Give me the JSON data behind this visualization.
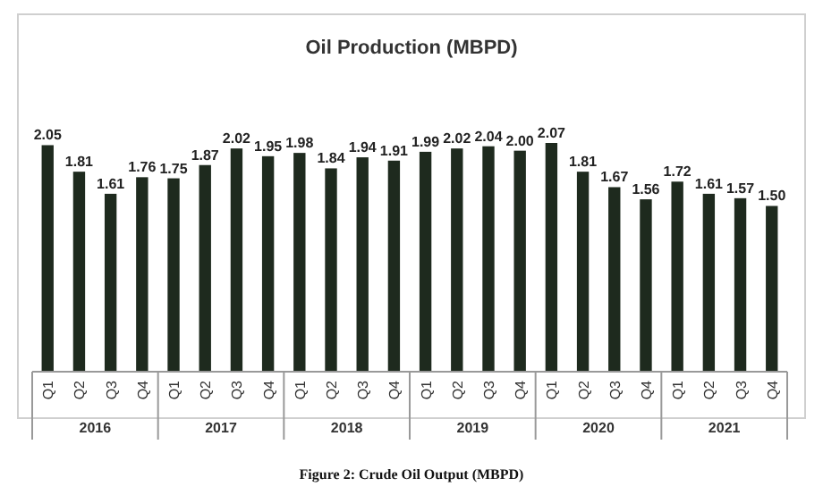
{
  "chart_data": {
    "type": "bar",
    "title": "Oil Production (MBPD)",
    "categories": [
      "Q1",
      "Q2",
      "Q3",
      "Q4",
      "Q1",
      "Q2",
      "Q3",
      "Q4",
      "Q1",
      "Q2",
      "Q3",
      "Q4",
      "Q1",
      "Q2",
      "Q3",
      "Q4",
      "Q1",
      "Q2",
      "Q3",
      "Q4",
      "Q1",
      "Q2",
      "Q3",
      "Q4"
    ],
    "values": [
      2.05,
      1.81,
      1.61,
      1.76,
      1.75,
      1.87,
      2.02,
      1.95,
      1.98,
      1.84,
      1.94,
      1.91,
      1.99,
      2.02,
      2.04,
      2.0,
      2.07,
      1.81,
      1.67,
      1.56,
      1.72,
      1.61,
      1.57,
      1.5
    ],
    "value_labels": [
      "2.05",
      "1.81",
      "1.61",
      "1.76",
      "1.75",
      "1.87",
      "2.02",
      "1.95",
      "1.98",
      "1.84",
      "1.94",
      "1.91",
      "1.99",
      "2.02",
      "2.04",
      "2.00",
      "2.07",
      "1.81",
      "1.67",
      "1.56",
      "1.72",
      "1.61",
      "1.57",
      "1.50"
    ],
    "color": "#1e2a1e",
    "annotations": [
      "2016",
      "2017",
      "2018",
      "2019",
      "2020",
      "2021",
      "Figure 2: Crude Oil Output (MBPD)"
    ]
  }
}
